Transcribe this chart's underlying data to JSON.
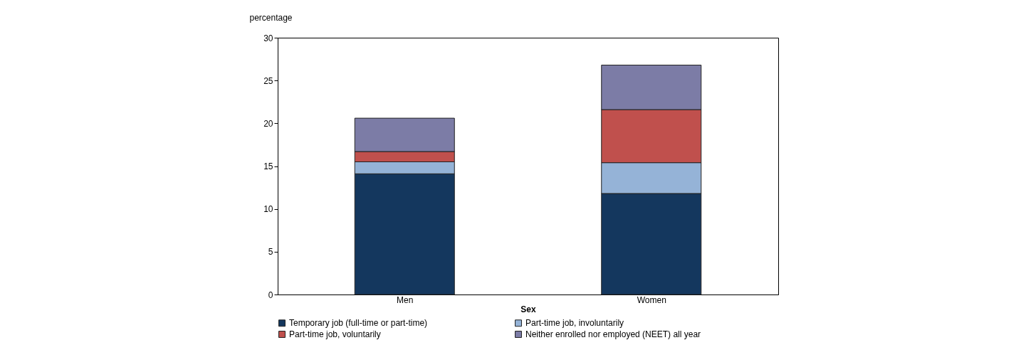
{
  "chart_data": {
    "type": "bar",
    "stacked": true,
    "xlabel": "Sex",
    "ylabel": "percentage",
    "categories": [
      "Men",
      "Women"
    ],
    "series": [
      {
        "name": "Temporary job (full-time or part-time)",
        "color": "#14375e",
        "values": [
          14.1,
          11.8
        ]
      },
      {
        "name": "Part-time job, involuntarily",
        "color": "#95b3d7",
        "values": [
          1.4,
          3.6
        ]
      },
      {
        "name": "Part-time job, voluntarily",
        "color": "#c0504d",
        "values": [
          1.2,
          6.2
        ]
      },
      {
        "name": "Neither enrolled nor employed (NEET) all year",
        "color": "#7c7ca6",
        "values": [
          3.9,
          5.2
        ]
      }
    ],
    "ylim": [
      0,
      30
    ],
    "yticks": [
      0,
      5,
      10,
      15,
      20,
      25,
      30
    ],
    "grid": false,
    "legend": "bottom"
  }
}
